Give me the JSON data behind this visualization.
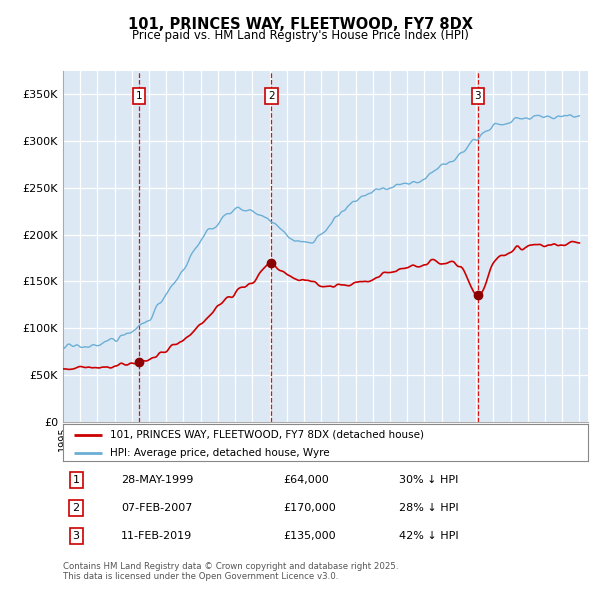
{
  "title": "101, PRINCES WAY, FLEETWOOD, FY7 8DX",
  "subtitle": "Price paid vs. HM Land Registry's House Price Index (HPI)",
  "background_color": "#ffffff",
  "chart_bg_color": "#dce9f5",
  "grid_color": "#ffffff",
  "hpi_color": "#6baed6",
  "price_color": "#cc0000",
  "vline_color": "#cc0000",
  "purchases": [
    {
      "label": "1",
      "year": 1999.42,
      "price": 64000,
      "year_label": "28-MAY-1999",
      "price_label": "£64,000",
      "hpi_label": "30% ↓ HPI"
    },
    {
      "label": "2",
      "year": 2007.1,
      "price": 170000,
      "year_label": "07-FEB-2007",
      "price_label": "£170,000",
      "hpi_label": "28% ↓ HPI"
    },
    {
      "label": "3",
      "year": 2019.1,
      "price": 135000,
      "year_label": "11-FEB-2019",
      "price_label": "£135,000",
      "hpi_label": "42% ↓ HPI"
    }
  ],
  "ylim": [
    0,
    375000
  ],
  "yticks": [
    0,
    50000,
    100000,
    150000,
    200000,
    250000,
    300000,
    350000
  ],
  "ytick_labels": [
    "£0",
    "£50K",
    "£100K",
    "£150K",
    "£200K",
    "£250K",
    "£300K",
    "£350K"
  ],
  "legend_label_price": "101, PRINCES WAY, FLEETWOOD, FY7 8DX (detached house)",
  "legend_label_hpi": "HPI: Average price, detached house, Wyre",
  "footer_text": "Contains HM Land Registry data © Crown copyright and database right 2025.\nThis data is licensed under the Open Government Licence v3.0.",
  "xlim_start": 1995,
  "xlim_end": 2025.5
}
